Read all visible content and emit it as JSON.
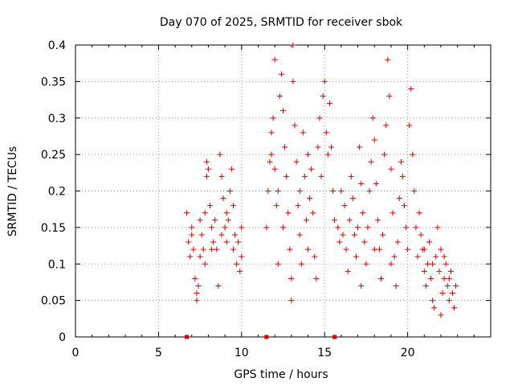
{
  "chart_data": {
    "type": "scatter",
    "title": "Day 070 of 2025, SRMTID for receiver sbok",
    "xlabel": "GPS time / hours",
    "ylabel": "SRMTID / TECUs",
    "xlim": [
      0,
      25
    ],
    "ylim": [
      0,
      0.4
    ],
    "grid": true,
    "marker": "plus",
    "color": "#dd0000",
    "x_ticks": [
      {
        "value": 0,
        "label": "0"
      },
      {
        "value": 5,
        "label": "5"
      },
      {
        "value": 10,
        "label": "10"
      },
      {
        "value": 15,
        "label": "15"
      },
      {
        "value": 20,
        "label": "20"
      }
    ],
    "y_ticks": [
      {
        "value": 0,
        "label": "0"
      },
      {
        "value": 0.05,
        "label": "0.05"
      },
      {
        "value": 0.1,
        "label": "0.1"
      },
      {
        "value": 0.15,
        "label": "0.15"
      },
      {
        "value": 0.2,
        "label": "0.2"
      },
      {
        "value": 0.25,
        "label": "0.25"
      },
      {
        "value": 0.3,
        "label": "0.3"
      },
      {
        "value": 0.35,
        "label": "0.35"
      },
      {
        "value": 0.4,
        "label": "0.4"
      }
    ],
    "zero_markers_x": [
      6.7,
      11.5,
      15.6
    ],
    "series": [
      {
        "name": "SRMTID",
        "points": [
          [
            6.7,
            0.17
          ],
          [
            6.8,
            0.13
          ],
          [
            6.9,
            0.11
          ],
          [
            7.0,
            0.15
          ],
          [
            7.1,
            0.12
          ],
          [
            7.2,
            0.08
          ],
          [
            7.3,
            0.06
          ],
          [
            7.3,
            0.05
          ],
          [
            7.4,
            0.07
          ],
          [
            7.5,
            0.11
          ],
          [
            7.6,
            0.14
          ],
          [
            7.7,
            0.12
          ],
          [
            7.8,
            0.1
          ],
          [
            7.9,
            0.22
          ],
          [
            7.9,
            0.24
          ],
          [
            8.0,
            0.23
          ],
          [
            8.1,
            0.18
          ],
          [
            8.2,
            0.15
          ],
          [
            8.3,
            0.13
          ],
          [
            8.4,
            0.16
          ],
          [
            8.5,
            0.12
          ],
          [
            8.6,
            0.07
          ],
          [
            8.7,
            0.25
          ],
          [
            8.8,
            0.22
          ],
          [
            8.9,
            0.19
          ],
          [
            9.0,
            0.15
          ],
          [
            9.1,
            0.13
          ],
          [
            9.2,
            0.16
          ],
          [
            9.3,
            0.2
          ],
          [
            9.4,
            0.23
          ],
          [
            9.5,
            0.18
          ],
          [
            9.6,
            0.14
          ],
          [
            9.7,
            0.1
          ],
          [
            9.8,
            0.13
          ],
          [
            9.9,
            0.09
          ],
          [
            10.0,
            0.15
          ],
          [
            10.0,
            0.11
          ],
          [
            7.0,
            0.14
          ],
          [
            7.5,
            0.16
          ],
          [
            8.2,
            0.12
          ],
          [
            8.8,
            0.14
          ],
          [
            9.5,
            0.12
          ],
          [
            7.8,
            0.17
          ],
          [
            9.1,
            0.17
          ],
          [
            11.5,
            0.15
          ],
          [
            11.6,
            0.2
          ],
          [
            11.7,
            0.24
          ],
          [
            11.8,
            0.28
          ],
          [
            11.9,
            0.3
          ],
          [
            12.0,
            0.23
          ],
          [
            12.1,
            0.18
          ],
          [
            12.2,
            0.2
          ],
          [
            12.2,
            0.1
          ],
          [
            12.3,
            0.33
          ],
          [
            12.4,
            0.36
          ],
          [
            12.5,
            0.31
          ],
          [
            12.6,
            0.26
          ],
          [
            12.7,
            0.22
          ],
          [
            12.8,
            0.17
          ],
          [
            12.9,
            0.12
          ],
          [
            13.0,
            0.08
          ],
          [
            13.0,
            0.05
          ],
          [
            13.1,
            0.35
          ],
          [
            13.1,
            0.4
          ],
          [
            13.2,
            0.29
          ],
          [
            13.3,
            0.24
          ],
          [
            13.4,
            0.18
          ],
          [
            13.5,
            0.14
          ],
          [
            13.6,
            0.1
          ],
          [
            13.7,
            0.28
          ],
          [
            13.8,
            0.22
          ],
          [
            13.9,
            0.16
          ],
          [
            14.0,
            0.12
          ],
          [
            14.1,
            0.19
          ],
          [
            14.2,
            0.23
          ],
          [
            14.3,
            0.17
          ],
          [
            14.4,
            0.11
          ],
          [
            14.5,
            0.08
          ],
          [
            14.6,
            0.26
          ],
          [
            14.7,
            0.3
          ],
          [
            14.8,
            0.22
          ],
          [
            14.9,
            0.33
          ],
          [
            15.0,
            0.35
          ],
          [
            15.1,
            0.28
          ],
          [
            15.2,
            0.25
          ],
          [
            15.3,
            0.32
          ],
          [
            15.4,
            0.26
          ],
          [
            15.5,
            0.2
          ],
          [
            15.6,
            0.16
          ],
          [
            12.0,
            0.38
          ],
          [
            12.5,
            0.15
          ],
          [
            13.5,
            0.2
          ],
          [
            14.0,
            0.25
          ],
          [
            11.8,
            0.25
          ],
          [
            15.8,
            0.15
          ],
          [
            15.9,
            0.13
          ],
          [
            16.0,
            0.2
          ],
          [
            16.1,
            0.14
          ],
          [
            16.2,
            0.18
          ],
          [
            16.3,
            0.12
          ],
          [
            16.4,
            0.09
          ],
          [
            16.5,
            0.16
          ],
          [
            16.6,
            0.22
          ],
          [
            16.7,
            0.19
          ],
          [
            16.8,
            0.14
          ],
          [
            16.9,
            0.11
          ],
          [
            17.0,
            0.15
          ],
          [
            17.1,
            0.26
          ],
          [
            17.2,
            0.21
          ],
          [
            17.3,
            0.17
          ],
          [
            17.4,
            0.13
          ],
          [
            17.5,
            0.1
          ],
          [
            17.6,
            0.15
          ],
          [
            17.7,
            0.2
          ],
          [
            17.8,
            0.24
          ],
          [
            17.9,
            0.3
          ],
          [
            18.0,
            0.27
          ],
          [
            18.1,
            0.21
          ],
          [
            18.2,
            0.16
          ],
          [
            18.3,
            0.12
          ],
          [
            18.4,
            0.08
          ],
          [
            18.5,
            0.14
          ],
          [
            18.6,
            0.25
          ],
          [
            18.7,
            0.29
          ],
          [
            18.8,
            0.38
          ],
          [
            18.9,
            0.33
          ],
          [
            19.0,
            0.23
          ],
          [
            19.1,
            0.17
          ],
          [
            19.2,
            0.11
          ],
          [
            19.3,
            0.07
          ],
          [
            19.4,
            0.13
          ],
          [
            19.5,
            0.19
          ],
          [
            19.6,
            0.24
          ],
          [
            19.7,
            0.22
          ],
          [
            19.8,
            0.18
          ],
          [
            19.9,
            0.15
          ],
          [
            20.0,
            0.12
          ],
          [
            20.1,
            0.29
          ],
          [
            20.2,
            0.34
          ],
          [
            20.3,
            0.25
          ],
          [
            20.4,
            0.2
          ],
          [
            20.5,
            0.15
          ],
          [
            20.6,
            0.11
          ],
          [
            20.7,
            0.17
          ],
          [
            17.2,
            0.07
          ],
          [
            19.0,
            0.1
          ],
          [
            18.0,
            0.12
          ],
          [
            20.8,
            0.14
          ],
          [
            20.9,
            0.12
          ],
          [
            21.0,
            0.09
          ],
          [
            21.1,
            0.07
          ],
          [
            21.2,
            0.1
          ],
          [
            21.3,
            0.13
          ],
          [
            21.4,
            0.08
          ],
          [
            21.5,
            0.05
          ],
          [
            21.6,
            0.04
          ],
          [
            21.7,
            0.11
          ],
          [
            21.8,
            0.15
          ],
          [
            21.9,
            0.09
          ],
          [
            22.0,
            0.12
          ],
          [
            22.1,
            0.06
          ],
          [
            22.2,
            0.08
          ],
          [
            22.3,
            0.1
          ],
          [
            22.4,
            0.07
          ],
          [
            22.5,
            0.05
          ],
          [
            22.6,
            0.09
          ],
          [
            22.7,
            0.06
          ],
          [
            22.8,
            0.04
          ],
          [
            22.9,
            0.07
          ],
          [
            22.0,
            0.03
          ],
          [
            21.5,
            0.1
          ],
          [
            22.5,
            0.08
          ],
          [
            21.0,
            0.12
          ],
          [
            22.2,
            0.11
          ]
        ]
      }
    ]
  }
}
